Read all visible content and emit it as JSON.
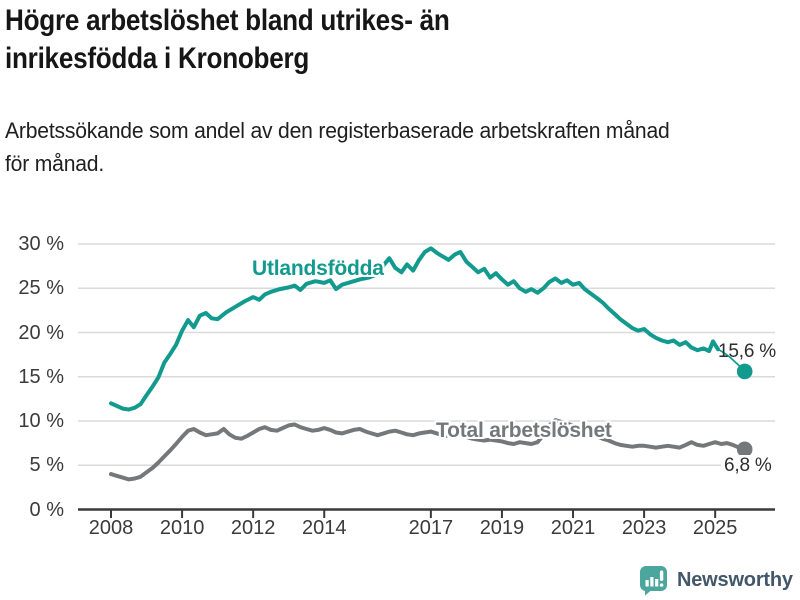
{
  "chart_data": {
    "type": "line",
    "title": "Högre arbetslöshet bland utrikes- än\ninrikesfödda i Kronoberg",
    "subtitle": "Arbetssökande som andel av den registerbaserade arbetskraften månad\nför månad.",
    "unit": "%",
    "grid": true,
    "legend_position": "inline-labels",
    "x_axis": {
      "tick_labels": [
        "2008",
        "2010",
        "2012",
        "2014",
        "2017",
        "2019",
        "2021",
        "2023",
        "2025"
      ],
      "tick_years": [
        2008,
        2010,
        2012,
        2014,
        2017,
        2019,
        2021,
        2023,
        2025
      ],
      "range_years": [
        2008,
        2025.83
      ]
    },
    "y_axis": {
      "tick_labels": [
        "0 %",
        "5 %",
        "10 %",
        "15 %",
        "20 %",
        "25 %",
        "30 %"
      ],
      "tick_values": [
        0,
        5,
        10,
        15,
        20,
        25,
        30
      ],
      "range": [
        0,
        30
      ],
      "gridline_color": "#dadada",
      "axis_color": "#3a3a3a"
    },
    "series": [
      {
        "name": "Utlandsfödda",
        "color": "#129a8f",
        "end_label": "15,6 %",
        "end_value": 15.6,
        "points": [
          [
            2008.0,
            12.0
          ],
          [
            2008.17,
            11.7
          ],
          [
            2008.33,
            11.4
          ],
          [
            2008.5,
            11.3
          ],
          [
            2008.67,
            11.5
          ],
          [
            2008.83,
            11.9
          ],
          [
            2009.0,
            12.9
          ],
          [
            2009.17,
            13.9
          ],
          [
            2009.33,
            14.9
          ],
          [
            2009.5,
            16.6
          ],
          [
            2009.67,
            17.6
          ],
          [
            2009.83,
            18.6
          ],
          [
            2010.0,
            20.2
          ],
          [
            2010.17,
            21.4
          ],
          [
            2010.33,
            20.6
          ],
          [
            2010.5,
            21.9
          ],
          [
            2010.67,
            22.2
          ],
          [
            2010.83,
            21.6
          ],
          [
            2011.0,
            21.5
          ],
          [
            2011.25,
            22.3
          ],
          [
            2011.5,
            22.9
          ],
          [
            2011.75,
            23.5
          ],
          [
            2012.0,
            24.0
          ],
          [
            2012.17,
            23.7
          ],
          [
            2012.33,
            24.3
          ],
          [
            2012.5,
            24.6
          ],
          [
            2012.75,
            24.9
          ],
          [
            2013.0,
            25.1
          ],
          [
            2013.17,
            25.3
          ],
          [
            2013.33,
            24.8
          ],
          [
            2013.5,
            25.5
          ],
          [
            2013.75,
            25.8
          ],
          [
            2014.0,
            25.6
          ],
          [
            2014.17,
            25.9
          ],
          [
            2014.33,
            24.9
          ],
          [
            2014.5,
            25.4
          ],
          [
            2014.75,
            25.7
          ],
          [
            2015.0,
            26.0
          ],
          [
            2015.25,
            26.2
          ],
          [
            2015.5,
            26.6
          ],
          [
            2015.67,
            27.6
          ],
          [
            2015.83,
            28.4
          ],
          [
            2016.0,
            27.3
          ],
          [
            2016.17,
            26.8
          ],
          [
            2016.33,
            27.7
          ],
          [
            2016.5,
            27.0
          ],
          [
            2016.67,
            28.2
          ],
          [
            2016.83,
            29.1
          ],
          [
            2017.0,
            29.5
          ],
          [
            2017.17,
            29.0
          ],
          [
            2017.33,
            28.6
          ],
          [
            2017.5,
            28.2
          ],
          [
            2017.67,
            28.8
          ],
          [
            2017.83,
            29.1
          ],
          [
            2018.0,
            28.0
          ],
          [
            2018.17,
            27.4
          ],
          [
            2018.33,
            26.8
          ],
          [
            2018.5,
            27.2
          ],
          [
            2018.67,
            26.2
          ],
          [
            2018.83,
            26.7
          ],
          [
            2019.0,
            26.0
          ],
          [
            2019.17,
            25.4
          ],
          [
            2019.33,
            25.8
          ],
          [
            2019.5,
            25.0
          ],
          [
            2019.67,
            24.6
          ],
          [
            2019.83,
            24.9
          ],
          [
            2020.0,
            24.5
          ],
          [
            2020.17,
            25.0
          ],
          [
            2020.33,
            25.7
          ],
          [
            2020.5,
            26.1
          ],
          [
            2020.67,
            25.6
          ],
          [
            2020.83,
            25.9
          ],
          [
            2021.0,
            25.4
          ],
          [
            2021.17,
            25.6
          ],
          [
            2021.33,
            24.9
          ],
          [
            2021.5,
            24.4
          ],
          [
            2021.67,
            23.9
          ],
          [
            2021.83,
            23.4
          ],
          [
            2022.0,
            22.7
          ],
          [
            2022.17,
            22.1
          ],
          [
            2022.33,
            21.5
          ],
          [
            2022.5,
            21.0
          ],
          [
            2022.67,
            20.5
          ],
          [
            2022.83,
            20.2
          ],
          [
            2023.0,
            20.4
          ],
          [
            2023.17,
            19.8
          ],
          [
            2023.33,
            19.4
          ],
          [
            2023.5,
            19.1
          ],
          [
            2023.67,
            18.9
          ],
          [
            2023.83,
            19.1
          ],
          [
            2024.0,
            18.6
          ],
          [
            2024.17,
            18.9
          ],
          [
            2024.33,
            18.3
          ],
          [
            2024.5,
            18.0
          ],
          [
            2024.67,
            18.2
          ],
          [
            2024.83,
            17.9
          ],
          [
            2024.94,
            19.0
          ],
          [
            2025.08,
            18.1
          ],
          [
            2025.25,
            17.7
          ],
          [
            2025.42,
            17.2
          ],
          [
            2025.58,
            16.6
          ],
          [
            2025.75,
            16.0
          ],
          [
            2025.83,
            15.6
          ]
        ]
      },
      {
        "name": "Total arbetslöshet",
        "color": "#75787b",
        "end_label": "6,8 %",
        "end_value": 6.8,
        "points": [
          [
            2008.0,
            4.0
          ],
          [
            2008.17,
            3.8
          ],
          [
            2008.33,
            3.6
          ],
          [
            2008.5,
            3.4
          ],
          [
            2008.67,
            3.5
          ],
          [
            2008.83,
            3.7
          ],
          [
            2009.0,
            4.2
          ],
          [
            2009.17,
            4.7
          ],
          [
            2009.33,
            5.3
          ],
          [
            2009.5,
            6.0
          ],
          [
            2009.67,
            6.7
          ],
          [
            2009.83,
            7.4
          ],
          [
            2010.0,
            8.2
          ],
          [
            2010.17,
            8.9
          ],
          [
            2010.33,
            9.1
          ],
          [
            2010.5,
            8.7
          ],
          [
            2010.67,
            8.4
          ],
          [
            2010.83,
            8.5
          ],
          [
            2011.0,
            8.6
          ],
          [
            2011.17,
            9.1
          ],
          [
            2011.33,
            8.5
          ],
          [
            2011.5,
            8.1
          ],
          [
            2011.67,
            8.0
          ],
          [
            2011.83,
            8.3
          ],
          [
            2012.0,
            8.7
          ],
          [
            2012.17,
            9.1
          ],
          [
            2012.33,
            9.3
          ],
          [
            2012.5,
            9.0
          ],
          [
            2012.67,
            8.9
          ],
          [
            2012.83,
            9.2
          ],
          [
            2013.0,
            9.5
          ],
          [
            2013.17,
            9.6
          ],
          [
            2013.33,
            9.3
          ],
          [
            2013.5,
            9.1
          ],
          [
            2013.67,
            8.9
          ],
          [
            2013.83,
            9.0
          ],
          [
            2014.0,
            9.2
          ],
          [
            2014.17,
            9.0
          ],
          [
            2014.33,
            8.7
          ],
          [
            2014.5,
            8.6
          ],
          [
            2014.67,
            8.8
          ],
          [
            2014.83,
            9.0
          ],
          [
            2015.0,
            9.1
          ],
          [
            2015.17,
            8.8
          ],
          [
            2015.33,
            8.6
          ],
          [
            2015.5,
            8.4
          ],
          [
            2015.67,
            8.6
          ],
          [
            2015.83,
            8.8
          ],
          [
            2016.0,
            8.9
          ],
          [
            2016.17,
            8.7
          ],
          [
            2016.33,
            8.5
          ],
          [
            2016.5,
            8.4
          ],
          [
            2016.67,
            8.6
          ],
          [
            2016.83,
            8.7
          ],
          [
            2017.0,
            8.8
          ],
          [
            2017.17,
            8.6
          ],
          [
            2017.33,
            8.4
          ],
          [
            2017.5,
            8.3
          ],
          [
            2017.67,
            8.5
          ],
          [
            2017.83,
            8.4
          ],
          [
            2018.0,
            8.2
          ],
          [
            2018.17,
            8.0
          ],
          [
            2018.33,
            7.9
          ],
          [
            2018.5,
            7.8
          ],
          [
            2018.67,
            7.9
          ],
          [
            2018.83,
            7.8
          ],
          [
            2019.0,
            7.7
          ],
          [
            2019.17,
            7.5
          ],
          [
            2019.33,
            7.4
          ],
          [
            2019.5,
            7.6
          ],
          [
            2019.67,
            7.5
          ],
          [
            2019.83,
            7.4
          ],
          [
            2020.0,
            7.6
          ],
          [
            2020.17,
            8.4
          ],
          [
            2020.33,
            9.5
          ],
          [
            2020.5,
            10.1
          ],
          [
            2020.67,
            9.9
          ],
          [
            2020.83,
            9.7
          ],
          [
            2021.0,
            9.5
          ],
          [
            2021.17,
            9.2
          ],
          [
            2021.33,
            8.9
          ],
          [
            2021.5,
            8.6
          ],
          [
            2021.67,
            8.3
          ],
          [
            2021.83,
            8.0
          ],
          [
            2022.0,
            7.8
          ],
          [
            2022.17,
            7.5
          ],
          [
            2022.33,
            7.3
          ],
          [
            2022.5,
            7.2
          ],
          [
            2022.67,
            7.1
          ],
          [
            2022.83,
            7.2
          ],
          [
            2023.0,
            7.2
          ],
          [
            2023.17,
            7.1
          ],
          [
            2023.33,
            7.0
          ],
          [
            2023.5,
            7.1
          ],
          [
            2023.67,
            7.2
          ],
          [
            2023.83,
            7.1
          ],
          [
            2024.0,
            7.0
          ],
          [
            2024.17,
            7.3
          ],
          [
            2024.33,
            7.6
          ],
          [
            2024.5,
            7.3
          ],
          [
            2024.67,
            7.2
          ],
          [
            2024.83,
            7.4
          ],
          [
            2025.0,
            7.6
          ],
          [
            2025.17,
            7.4
          ],
          [
            2025.33,
            7.5
          ],
          [
            2025.5,
            7.3
          ],
          [
            2025.67,
            7.0
          ],
          [
            2025.83,
            6.8
          ]
        ]
      }
    ]
  },
  "footer": {
    "brand": "Newsworthy",
    "logo_icon": "bar-chart-speech-bubble-icon",
    "logo_color": "#4ba69d"
  }
}
